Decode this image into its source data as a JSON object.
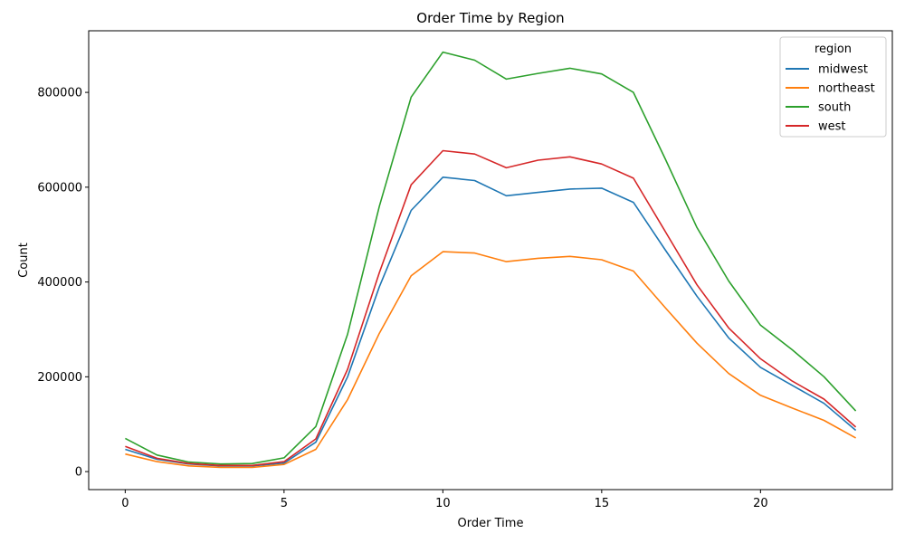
{
  "chart_data": {
    "type": "line",
    "title": "Order Time by Region",
    "xlabel": "Order Time",
    "ylabel": "Count",
    "xlim": [
      -1.15,
      24.15
    ],
    "ylim": [
      -38000,
      930000
    ],
    "xticks": [
      0,
      5,
      10,
      15,
      20
    ],
    "yticks": [
      0,
      200000,
      400000,
      600000,
      800000
    ],
    "grid": false,
    "legend_title": "region",
    "legend_position": "top-right",
    "x": [
      0,
      1,
      2,
      3,
      4,
      5,
      6,
      7,
      8,
      9,
      10,
      11,
      12,
      13,
      14,
      15,
      16,
      17,
      18,
      19,
      20,
      21,
      22,
      23
    ],
    "series": [
      {
        "name": "midwest",
        "color": "#1f77b4",
        "values": [
          47000,
          26000,
          16000,
          12000,
          12000,
          18000,
          62000,
          200000,
          390000,
          551000,
          621000,
          614000,
          582000,
          589000,
          596000,
          598000,
          568000,
          468000,
          370000,
          282000,
          220000,
          182000,
          144000,
          87000
        ]
      },
      {
        "name": "northeast",
        "color": "#ff7f0e",
        "values": [
          37000,
          21000,
          12000,
          9000,
          9000,
          15000,
          47000,
          152000,
          292000,
          413000,
          464000,
          461000,
          443000,
          450000,
          454000,
          447000,
          423000,
          346000,
          271000,
          207000,
          161000,
          134000,
          108000,
          71000
        ]
      },
      {
        "name": "south",
        "color": "#2ca02c",
        "values": [
          70000,
          35000,
          20000,
          16000,
          17000,
          29000,
          95000,
          290000,
          560000,
          790000,
          885000,
          868000,
          828000,
          840000,
          851000,
          839000,
          800000,
          660000,
          515000,
          402000,
          309000,
          257000,
          200000,
          128000
        ]
      },
      {
        "name": "west",
        "color": "#d62728",
        "values": [
          53000,
          28000,
          17000,
          13000,
          13000,
          21000,
          69000,
          216000,
          420000,
          605000,
          677000,
          670000,
          641000,
          657000,
          664000,
          649000,
          619000,
          507000,
          394000,
          303000,
          238000,
          191000,
          153000,
          94000
        ]
      }
    ]
  }
}
